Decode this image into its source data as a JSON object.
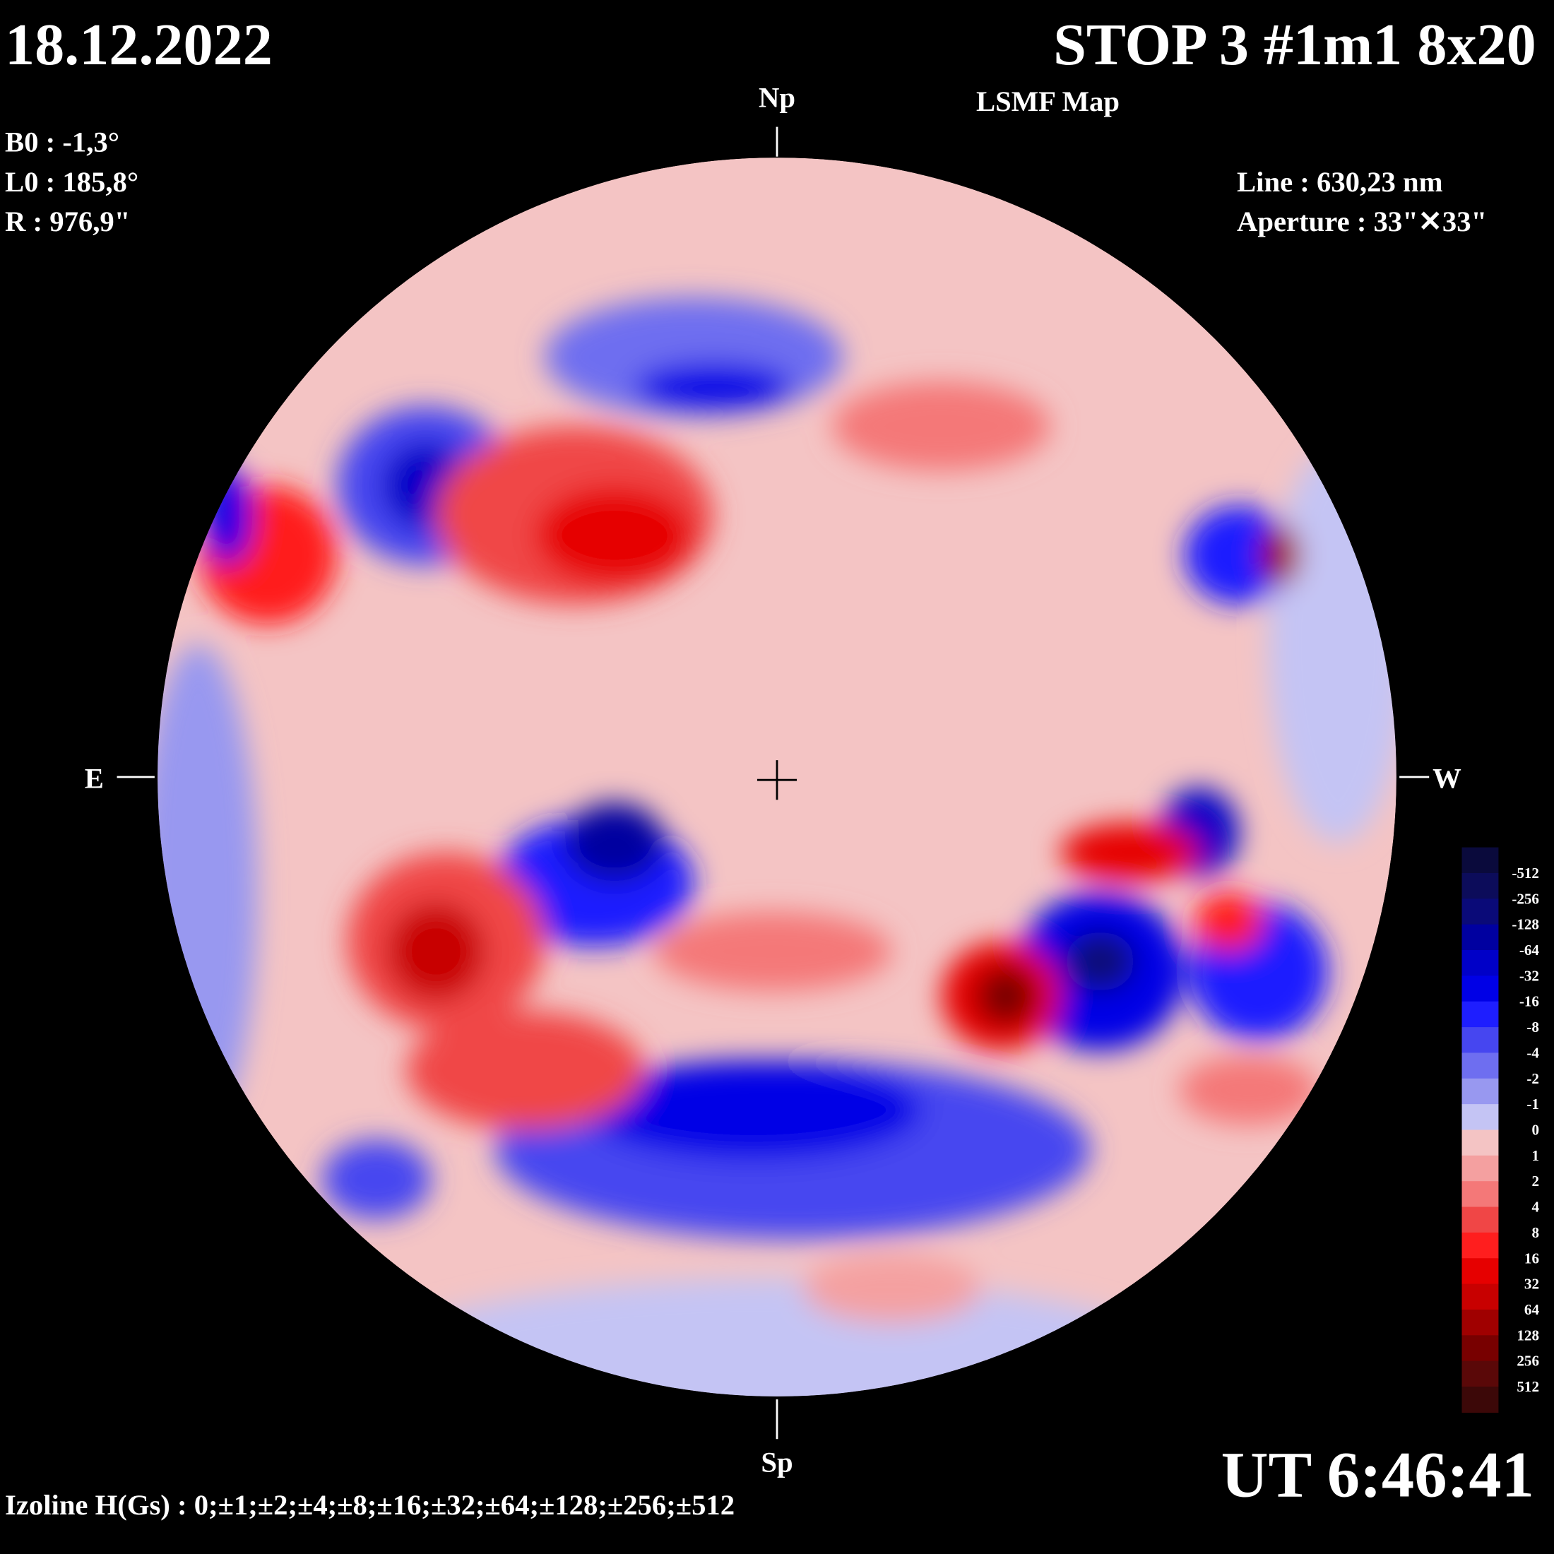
{
  "header": {
    "date": "18.12.2022",
    "title": "STOP 3 #1m1 8x20",
    "subtitle": "LSMF  Map",
    "time": "UT 6:46:41"
  },
  "params": {
    "b0": "B0 : -1,3°",
    "l0": "L0 : 185,8°",
    "r": "R  : 976,9\"",
    "line": "Line :  630,23 nm",
    "aperture": "Aperture : 33\"✕33\""
  },
  "directions": {
    "north": "Np",
    "south": "Sp",
    "east": "E",
    "west": "W"
  },
  "footer": "Izoline H(Gs) : 0;±1;±2;±4;±8;±16;±32;±64;±128;±256;±512",
  "colorbar": {
    "labels": [
      "-512",
      "-256",
      "-128",
      "-64",
      "-32",
      "-16",
      "-8",
      "-4",
      "-2",
      "-1",
      "0",
      "1",
      "2",
      "4",
      "8",
      "16",
      "32",
      "64",
      "128",
      "256",
      "512"
    ],
    "colors": [
      "#0a0a3c",
      "#0c0c5a",
      "#0a0a78",
      "#0000a0",
      "#0000c8",
      "#0000e6",
      "#1e1eff",
      "#4646f0",
      "#6e6ef0",
      "#9898f0",
      "#c4c4f4",
      "#f4c4c4",
      "#f4a0a0",
      "#f47878",
      "#f04646",
      "#ff1e1e",
      "#e60000",
      "#c80000",
      "#a00000",
      "#780000",
      "#5a0808",
      "#3c0808"
    ]
  }
}
